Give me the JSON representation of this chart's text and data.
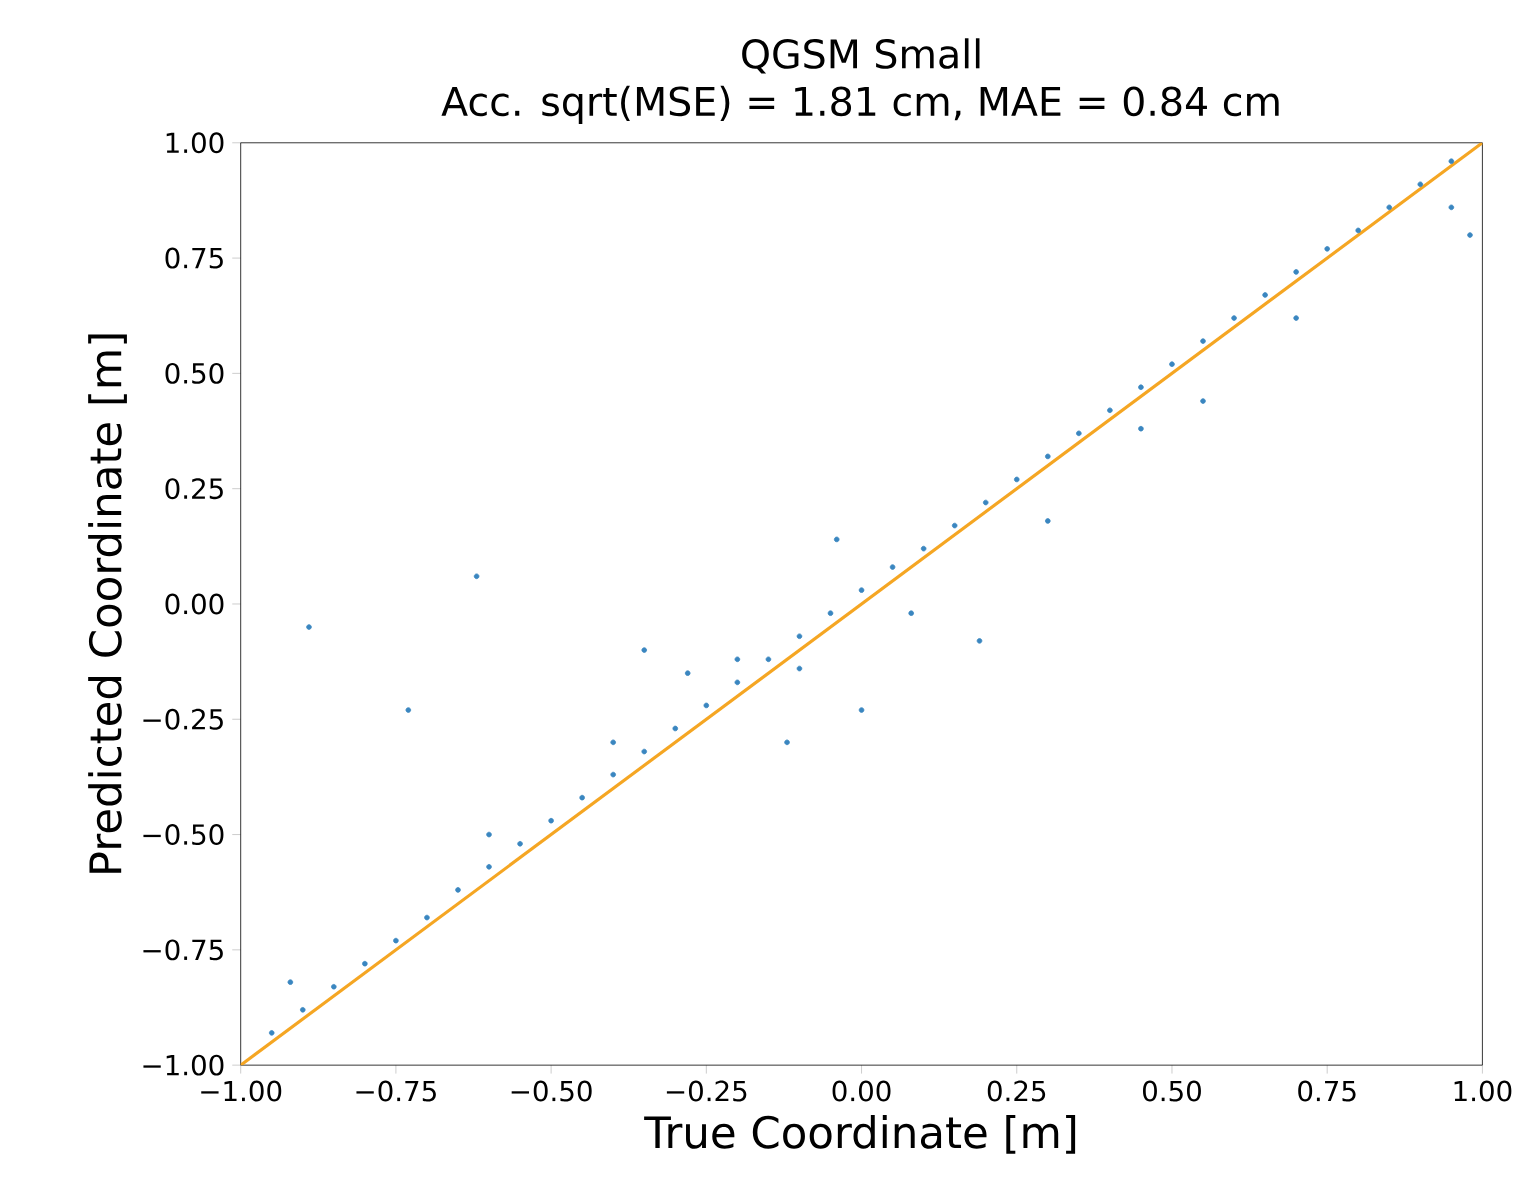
{
  "chart_data": {
    "type": "scatter",
    "title": "QGSM Small",
    "subtitle": "Acc. sqrt(MSE) = 1.81 cm, MAE = 0.84 cm",
    "xlabel": "True Coordinate [m]",
    "ylabel": "Predicted Coordinate [m]",
    "xlim": [
      -1,
      1
    ],
    "ylim": [
      -1,
      1
    ],
    "xticks": [
      {
        "value": -1,
        "label": "−1.00"
      },
      {
        "value": -0.75,
        "label": "−0.75"
      },
      {
        "value": -0.5,
        "label": "−0.50"
      },
      {
        "value": -0.25,
        "label": "−0.25"
      },
      {
        "value": 0,
        "label": "0.00"
      },
      {
        "value": 0.25,
        "label": "0.25"
      },
      {
        "value": 0.5,
        "label": "0.50"
      },
      {
        "value": 0.75,
        "label": "0.75"
      },
      {
        "value": 1,
        "label": "1.00"
      }
    ],
    "yticks": [
      {
        "value": -1,
        "label": "−1.00"
      },
      {
        "value": -0.75,
        "label": "−0.75"
      },
      {
        "value": -0.5,
        "label": "−0.50"
      },
      {
        "value": -0.25,
        "label": "−0.25"
      },
      {
        "value": 0,
        "label": "0.00"
      },
      {
        "value": 0.25,
        "label": "0.25"
      },
      {
        "value": 0.5,
        "label": "0.50"
      },
      {
        "value": 0.75,
        "label": "0.75"
      },
      {
        "value": 1,
        "label": "1.00"
      }
    ],
    "series": [
      {
        "color": "#3a86c0",
        "marker": "circle",
        "x": [
          -0.95,
          -0.9,
          -0.85,
          -0.8,
          -0.75,
          -0.7,
          -0.65,
          -0.6,
          -0.55,
          -0.5,
          -0.45,
          -0.4,
          -0.35,
          -0.3,
          -0.25,
          -0.2,
          -0.15,
          -0.1,
          -0.05,
          0.0,
          0.05,
          0.1,
          0.15,
          0.2,
          0.25,
          0.3,
          0.35,
          0.4,
          0.45,
          0.5,
          0.55,
          0.6,
          0.65,
          0.7,
          0.75,
          0.8,
          0.85,
          0.9,
          0.95,
          -0.62,
          -0.89,
          -0.73,
          -0.35,
          -0.28,
          -0.2,
          -0.1,
          0.19,
          0.0,
          -0.12,
          -0.04,
          0.08,
          0.3,
          0.55,
          0.98,
          0.95,
          -0.92,
          -0.6,
          -0.4,
          0.45,
          0.7
        ],
        "values": [
          -0.93,
          -0.88,
          -0.83,
          -0.78,
          -0.73,
          -0.68,
          -0.62,
          -0.57,
          -0.52,
          -0.47,
          -0.42,
          -0.37,
          -0.32,
          -0.27,
          -0.22,
          -0.17,
          -0.12,
          -0.07,
          -0.02,
          0.03,
          0.08,
          0.12,
          0.17,
          0.22,
          0.27,
          0.32,
          0.37,
          0.42,
          0.47,
          0.52,
          0.57,
          0.62,
          0.67,
          0.72,
          0.77,
          0.81,
          0.86,
          0.91,
          0.96,
          0.06,
          -0.05,
          -0.23,
          -0.1,
          -0.15,
          -0.12,
          -0.14,
          -0.08,
          -0.23,
          -0.3,
          0.14,
          -0.02,
          0.18,
          0.44,
          0.8,
          0.86,
          -0.82,
          -0.5,
          -0.3,
          0.38,
          0.62
        ]
      },
      {
        "type": "line",
        "color": "#f5a623",
        "x": [
          -1,
          1
        ],
        "values": [
          -1,
          1
        ]
      }
    ]
  }
}
